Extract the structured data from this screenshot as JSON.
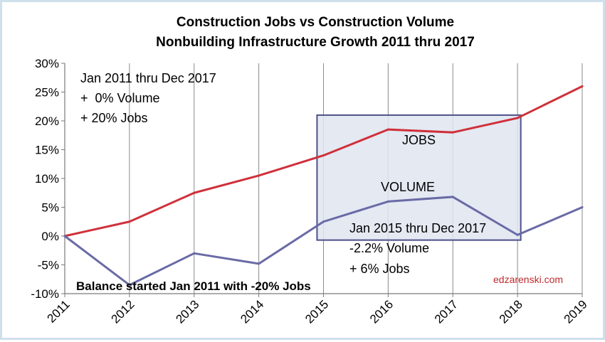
{
  "chart_data": {
    "type": "line",
    "title": "Construction Jobs vs Construction Volume",
    "subtitle": "Nonbuilding Infrastructure Growth 2011 thru 2017",
    "x": [
      "2011",
      "2012",
      "2013",
      "2014",
      "2015",
      "2016",
      "2017",
      "2018",
      "2019"
    ],
    "ylim": [
      -0.1,
      0.3
    ],
    "yticks": [
      -0.1,
      -0.05,
      0.0,
      0.05,
      0.1,
      0.15,
      0.2,
      0.25,
      0.3
    ],
    "ytick_labels": [
      "-10%",
      "-5%",
      "0%",
      "5%",
      "10%",
      "15%",
      "20%",
      "25%",
      "30%"
    ],
    "grid": "vertical",
    "series": [
      {
        "name": "JOBS",
        "color": "#d0303a",
        "values": [
          0.0,
          0.025,
          0.075,
          0.105,
          0.14,
          0.185,
          0.18,
          0.205,
          0.26
        ]
      },
      {
        "name": "VOLUME",
        "color": "#6a6aa6",
        "values": [
          0.0,
          -0.085,
          -0.03,
          -0.048,
          0.025,
          0.06,
          0.068,
          0.002,
          0.05
        ]
      }
    ],
    "highlight_box": {
      "x_from": "2014.9",
      "x_to": "2018.05",
      "y_from": -0.007,
      "y_to": 0.21,
      "fill": "#dfe5f0",
      "stroke": "#4d5088"
    },
    "annotations": {
      "overall": [
        "Jan 2011 thru Dec 2017",
        "+  0% Volume",
        "+ 20% Jobs"
      ],
      "recent": [
        "Jan 2015 thru Dec 2017",
        "-2.2% Volume",
        "+ 6% Jobs"
      ],
      "balance": "Balance started Jan 2011 with -20% Jobs",
      "watermark": "edzarenski.com"
    }
  }
}
